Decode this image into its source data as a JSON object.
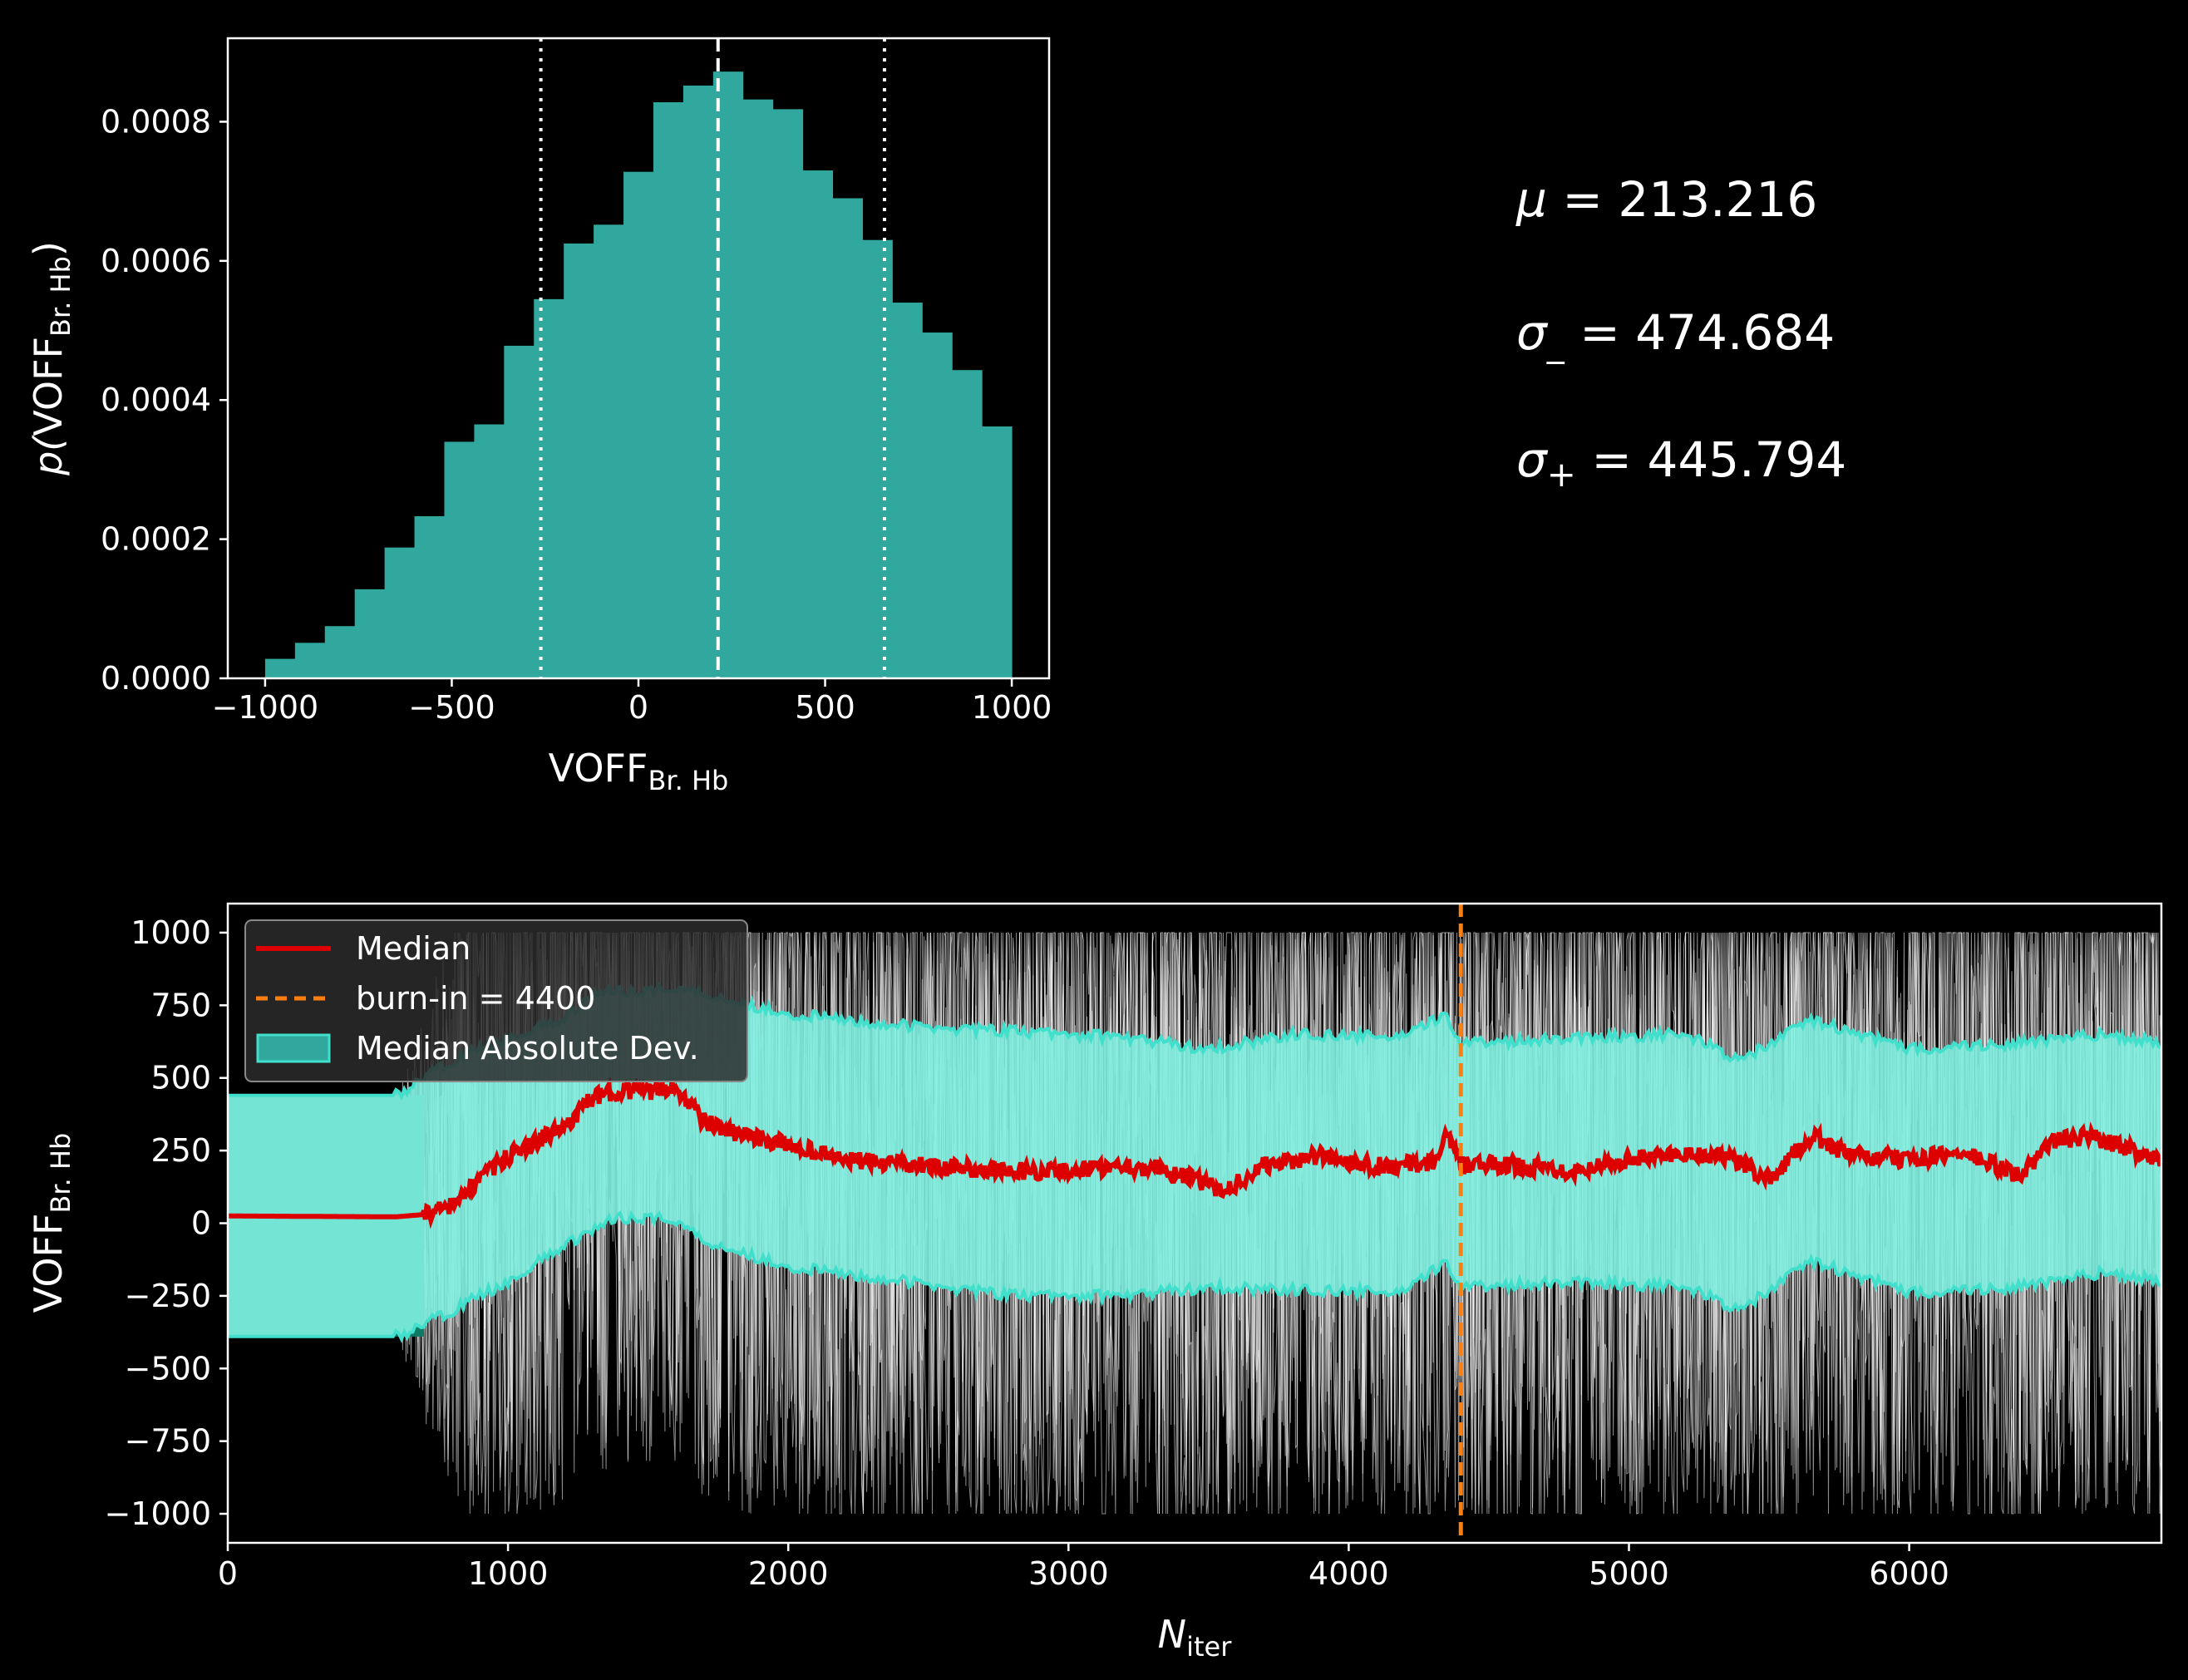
{
  "stats": {
    "mu": {
      "symbol": "μ",
      "sub": "",
      "value": "213.216"
    },
    "sigma_minus": {
      "symbol": "σ",
      "sub": "_",
      "value": "474.684"
    },
    "sigma_plus": {
      "symbol": "σ",
      "sub": "+",
      "value": "445.794"
    }
  },
  "colors": {
    "hist": "#30a89d",
    "mad_fill": "#7ff0e0",
    "mad_edge": "#40e0cc",
    "median": "#dd0000",
    "burnin": "#ff7f0e",
    "init_fill": "#0e7a66",
    "walkers": "#ffffff"
  },
  "chart_data": [
    {
      "type": "bar",
      "xlabel": "VOFF",
      "xlabel_sub": "Br. Hb",
      "ylabel_prefix": "p(",
      "ylabel": "VOFF",
      "ylabel_sub": "Br. Hb",
      "ylabel_suffix": ")",
      "xlim": [
        -1100,
        1100
      ],
      "ylim": [
        0,
        0.00092
      ],
      "xticks": [
        -1000,
        -500,
        0,
        500,
        1000
      ],
      "xtick_labels": [
        "−1000",
        "−500",
        "0",
        "500",
        "1000"
      ],
      "yticks": [
        0,
        0.0002,
        0.0004,
        0.0006,
        0.0008
      ],
      "ytick_labels": [
        "0.0000",
        "0.0002",
        "0.0004",
        "0.0006",
        "0.0008"
      ],
      "bin_edges_start": -1000,
      "bin_width": 80,
      "values": [
        2.8e-05,
        5.1e-05,
        7.5e-05,
        0.000128,
        0.000188,
        0.000233,
        0.00034,
        0.000365,
        0.000478,
        0.000545,
        0.000625,
        0.000652,
        0.000728,
        0.000828,
        0.000852,
        0.000872,
        0.000832,
        0.000818,
        0.00073,
        0.00069,
        0.00063,
        0.00054,
        0.000497,
        0.000443,
        0.000362
      ],
      "vlines": [
        {
          "x": 213.216,
          "style": "dashed"
        },
        {
          "x": -261.468,
          "style": "dotted"
        },
        {
          "x": 659.01,
          "style": "dotted"
        }
      ]
    },
    {
      "type": "line",
      "xlabel": "N",
      "xlabel_sub": "iter",
      "ylabel": "VOFF",
      "ylabel_sub": "Br. Hb",
      "xlim": [
        0,
        6900
      ],
      "ylim": [
        -1100,
        1100
      ],
      "xticks": [
        0,
        1000,
        2000,
        3000,
        4000,
        5000,
        6000
      ],
      "xtick_labels": [
        "0",
        "1000",
        "2000",
        "3000",
        "4000",
        "5000",
        "6000"
      ],
      "yticks": [
        1000,
        750,
        500,
        250,
        0,
        -250,
        -500,
        -750,
        -1000
      ],
      "ytick_labels": [
        "1000",
        "750",
        "500",
        "250",
        "0",
        "−250",
        "−500",
        "−750",
        "−1000"
      ],
      "burn_in": 4400,
      "series": [
        {
          "name": "Median",
          "x": [
            0,
            600,
            700,
            800,
            900,
            1000,
            1100,
            1200,
            1300,
            1400,
            1500,
            1600,
            1700,
            1800,
            2000,
            2200,
            2400,
            2600,
            2800,
            3000,
            3200,
            3400,
            3550,
            3700,
            3900,
            4100,
            4200,
            4300,
            4350,
            4400,
            4600,
            4800,
            5000,
            5200,
            5350,
            5500,
            5650,
            5800,
            6000,
            6200,
            6400,
            6500,
            6650,
            6900
          ],
          "values": [
            25,
            22,
            30,
            60,
            150,
            230,
            280,
            330,
            430,
            460,
            450,
            470,
            350,
            310,
            270,
            220,
            200,
            190,
            180,
            180,
            200,
            170,
            110,
            200,
            230,
            200,
            200,
            210,
            300,
            200,
            200,
            180,
            220,
            240,
            230,
            150,
            300,
            230,
            220,
            240,
            160,
            280,
            300,
            220
          ]
        },
        {
          "name": "Median Absolute Dev.",
          "x": [
            0,
            600,
            700,
            800,
            1000,
            1200,
            1300,
            1400,
            1500,
            1600,
            1700,
            2000,
            2400,
            2800,
            3200,
            3500,
            3800,
            4200,
            4350,
            4400,
            4800,
            5200,
            5400,
            5650,
            6000,
            6400,
            6700,
            6900
          ],
          "upper": [
            440,
            440,
            500,
            560,
            640,
            700,
            790,
            800,
            800,
            810,
            790,
            720,
            680,
            660,
            640,
            600,
            650,
            640,
            720,
            620,
            640,
            650,
            560,
            700,
            600,
            620,
            650,
            620
          ],
          "lower": [
            -390,
            -390,
            -350,
            -300,
            -200,
            -80,
            -20,
            20,
            20,
            10,
            -60,
            -150,
            -200,
            -250,
            -250,
            -220,
            -230,
            -240,
            -130,
            -220,
            -200,
            -220,
            -300,
            -130,
            -240,
            -220,
            -170,
            -200
          ]
        },
        {
          "name": "burn-in = 4400",
          "x": [
            4400,
            4400
          ],
          "values": [
            -1100,
            1100
          ]
        }
      ],
      "walkers_envelope": {
        "initial": [
          -390,
          440
        ],
        "spread_after": 900,
        "range": [
          -1000,
          1000
        ]
      },
      "legend_position": "upper-left",
      "legend": [
        {
          "label": "Median",
          "kind": "line",
          "color": "#dd0000"
        },
        {
          "label": "burn-in = 4400",
          "kind": "dashed",
          "color": "#ff7f0e"
        },
        {
          "label": "Median Absolute Dev.",
          "kind": "patch",
          "color": "#30a89d"
        }
      ]
    }
  ]
}
